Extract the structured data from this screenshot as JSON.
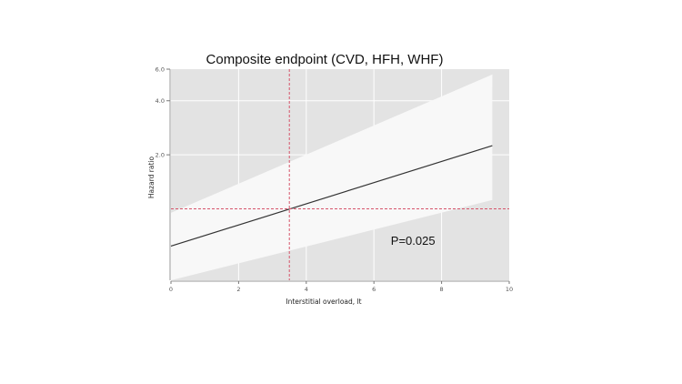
{
  "chart_data": {
    "type": "line",
    "title": "Composite endpoint (CVD, HFH, WHF)",
    "xlabel": "Interstitial overload, lt",
    "ylabel": "Hazard ratio",
    "xlim": [
      0,
      10
    ],
    "ylim": [
      0.4,
      6.0
    ],
    "yscale": "log",
    "x_ticks": [
      0,
      2,
      4,
      6,
      8,
      10
    ],
    "x_tick_labels": [
      "0",
      "2",
      "4",
      "6",
      "8",
      "10"
    ],
    "y_ticks": [
      2.0,
      4.0,
      6.0
    ],
    "y_tick_labels": [
      "2.0",
      "4.0",
      "6.0"
    ],
    "grid": true,
    "reference_lines": {
      "x": 3.5,
      "y": 1.0
    },
    "series": [
      {
        "x": [
          0,
          9.5
        ],
        "y": [
          0.62,
          2.25
        ],
        "lower": [
          0.4,
          1.12
        ],
        "upper": [
          0.95,
          5.6
        ]
      }
    ],
    "annotations": [
      {
        "text": "P=0.025",
        "x": 6.5,
        "y": 0.63
      }
    ],
    "colors": {
      "panel": "#e3e3e3",
      "grid": "#ffffff",
      "band": "#f8f8f8",
      "line": "#333333",
      "reference": "#d6546a"
    }
  }
}
